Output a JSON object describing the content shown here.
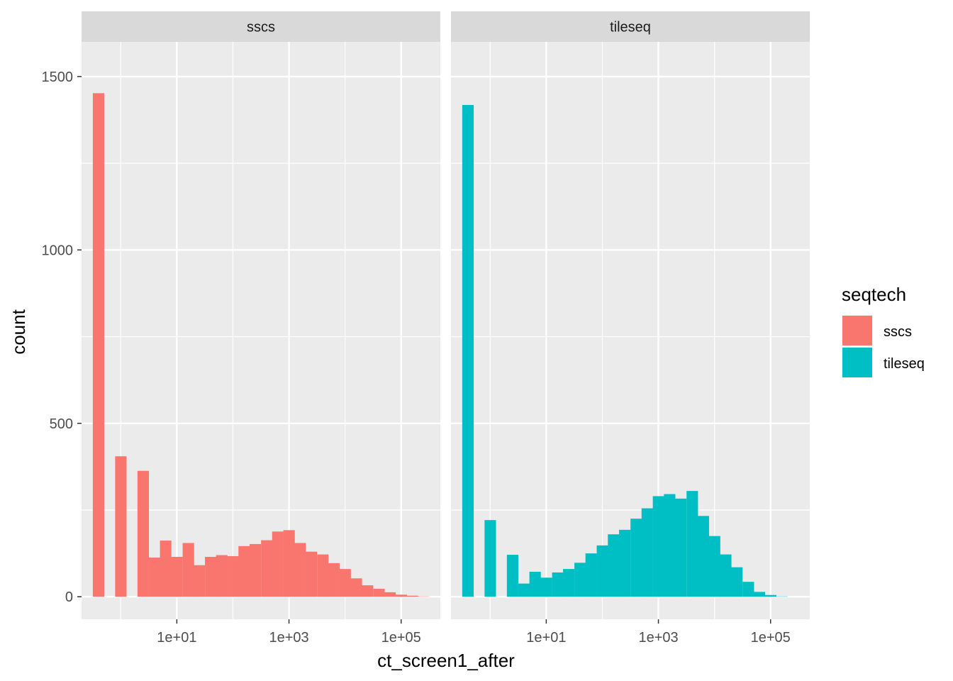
{
  "chart_data": {
    "type": "bar",
    "chart_kind": "faceted histogram",
    "xlabel": "ct_screen1_after",
    "ylabel": "count",
    "x_scale": "log10",
    "x_ticks": [
      {
        "value": 10,
        "label": "1e+01"
      },
      {
        "value": 1000,
        "label": "1e+03"
      },
      {
        "value": 100000,
        "label": "1e+05"
      }
    ],
    "x_range": [
      0.2,
      500000
    ],
    "y_ticks": [
      0,
      500,
      1000,
      1500
    ],
    "ylim": [
      -65,
      1600
    ],
    "grid": true,
    "legend": {
      "title": "seqtech",
      "position": "right",
      "entries": [
        {
          "label": "sscs",
          "color": "#F8766D"
        },
        {
          "label": "tileseq",
          "color": "#00BFC4"
        }
      ]
    },
    "facets": [
      {
        "strip": "sscs",
        "color": "#F8766D",
        "bins": [
          {
            "x": 0.4,
            "count": 1452
          },
          {
            "x": 0.63,
            "count": 0
          },
          {
            "x": 1.0,
            "count": 405
          },
          {
            "x": 1.58,
            "count": 0
          },
          {
            "x": 2.5,
            "count": 363
          },
          {
            "x": 4.0,
            "count": 113
          },
          {
            "x": 6.3,
            "count": 162
          },
          {
            "x": 10,
            "count": 115
          },
          {
            "x": 16,
            "count": 155
          },
          {
            "x": 25,
            "count": 91
          },
          {
            "x": 40,
            "count": 115
          },
          {
            "x": 63,
            "count": 120
          },
          {
            "x": 100,
            "count": 117
          },
          {
            "x": 158,
            "count": 146
          },
          {
            "x": 250,
            "count": 152
          },
          {
            "x": 400,
            "count": 163
          },
          {
            "x": 630,
            "count": 188
          },
          {
            "x": 1000,
            "count": 192
          },
          {
            "x": 1580,
            "count": 155
          },
          {
            "x": 2500,
            "count": 130
          },
          {
            "x": 4000,
            "count": 122
          },
          {
            "x": 6300,
            "count": 97
          },
          {
            "x": 10000,
            "count": 80
          },
          {
            "x": 15800,
            "count": 53
          },
          {
            "x": 25000,
            "count": 33
          },
          {
            "x": 40000,
            "count": 23
          },
          {
            "x": 63000,
            "count": 13
          },
          {
            "x": 100000,
            "count": 6
          },
          {
            "x": 158000,
            "count": 3
          },
          {
            "x": 250000,
            "count": 1
          }
        ]
      },
      {
        "strip": "tileseq",
        "color": "#00BFC4",
        "bins": [
          {
            "x": 0.4,
            "count": 1418
          },
          {
            "x": 0.63,
            "count": 0
          },
          {
            "x": 1.0,
            "count": 221
          },
          {
            "x": 1.58,
            "count": 0
          },
          {
            "x": 2.5,
            "count": 121
          },
          {
            "x": 4.0,
            "count": 38
          },
          {
            "x": 6.3,
            "count": 72
          },
          {
            "x": 10,
            "count": 55
          },
          {
            "x": 16,
            "count": 70
          },
          {
            "x": 25,
            "count": 80
          },
          {
            "x": 40,
            "count": 98
          },
          {
            "x": 63,
            "count": 125
          },
          {
            "x": 100,
            "count": 148
          },
          {
            "x": 158,
            "count": 180
          },
          {
            "x": 250,
            "count": 193
          },
          {
            "x": 400,
            "count": 225
          },
          {
            "x": 630,
            "count": 255
          },
          {
            "x": 1000,
            "count": 290
          },
          {
            "x": 1580,
            "count": 296
          },
          {
            "x": 2500,
            "count": 283
          },
          {
            "x": 4000,
            "count": 305
          },
          {
            "x": 6300,
            "count": 233
          },
          {
            "x": 10000,
            "count": 175
          },
          {
            "x": 15800,
            "count": 122
          },
          {
            "x": 25000,
            "count": 85
          },
          {
            "x": 40000,
            "count": 43
          },
          {
            "x": 63000,
            "count": 14
          },
          {
            "x": 100000,
            "count": 5
          },
          {
            "x": 158000,
            "count": 1
          }
        ]
      }
    ]
  }
}
